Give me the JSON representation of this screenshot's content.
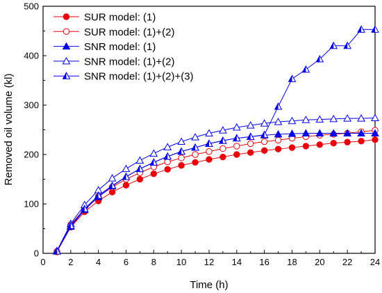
{
  "chart_data": {
    "type": "line",
    "xlabel": "Time (h)",
    "ylabel": "Removed oil volume (kl)",
    "xlim": [
      0,
      24
    ],
    "ylim": [
      0,
      500
    ],
    "xticks": [
      "0",
      "2",
      "4",
      "6",
      "8",
      "10",
      "12",
      "14",
      "16",
      "18",
      "20",
      "22",
      "24"
    ],
    "yticks": [
      "0",
      "100",
      "200",
      "300",
      "400",
      "500"
    ],
    "grid": false,
    "legend_position": "top-left",
    "x": [
      1,
      2,
      3,
      4,
      5,
      6,
      7,
      8,
      9,
      10,
      11,
      12,
      13,
      14,
      15,
      16,
      17,
      18,
      19,
      20,
      21,
      22,
      23,
      24
    ],
    "series": [
      {
        "name": "SUR model: (1)",
        "color": "#e8000b",
        "marker": "circle",
        "filled": true,
        "values": [
          3,
          53,
          84,
          106,
          124,
          138,
          150,
          161,
          170,
          178,
          184,
          190,
          195,
          200,
          204,
          208,
          211,
          214,
          217,
          220,
          223,
          225,
          227,
          230
        ]
      },
      {
        "name": "SUR model: (1)+(2)",
        "color": "#e8000b",
        "marker": "circle",
        "filled": false,
        "values": [
          4,
          58,
          90,
          115,
          134,
          150,
          163,
          175,
          185,
          193,
          200,
          206,
          212,
          217,
          222,
          226,
          229,
          233,
          236,
          239,
          241,
          243,
          246,
          249
        ]
      },
      {
        "name": "SNR model: (1)",
        "color": "#0000e6",
        "marker": "triangle",
        "filled": true,
        "values": [
          4,
          54,
          88,
          114,
          136,
          155,
          171,
          184,
          196,
          206,
          214,
          222,
          228,
          233,
          236,
          239,
          241,
          242,
          243,
          243,
          243,
          243,
          243,
          243
        ]
      },
      {
        "name": "SNR model: (1)+(2)",
        "color": "#0000e6",
        "marker": "triangle",
        "filled": false,
        "values": [
          5,
          60,
          98,
          128,
          152,
          171,
          188,
          202,
          215,
          226,
          235,
          243,
          249,
          255,
          259,
          263,
          266,
          268,
          270,
          271,
          272,
          273,
          273,
          274
        ]
      },
      {
        "name": "SNR model: (1)+(2)+(3)",
        "color": "#0000e6",
        "marker": "half-triangle",
        "filled": false,
        "values": [
          4,
          56,
          90,
          117,
          137,
          155,
          171,
          184,
          196,
          206,
          214,
          222,
          228,
          233,
          236,
          240,
          297,
          353,
          372,
          393,
          420,
          420,
          453,
          453
        ]
      }
    ]
  }
}
